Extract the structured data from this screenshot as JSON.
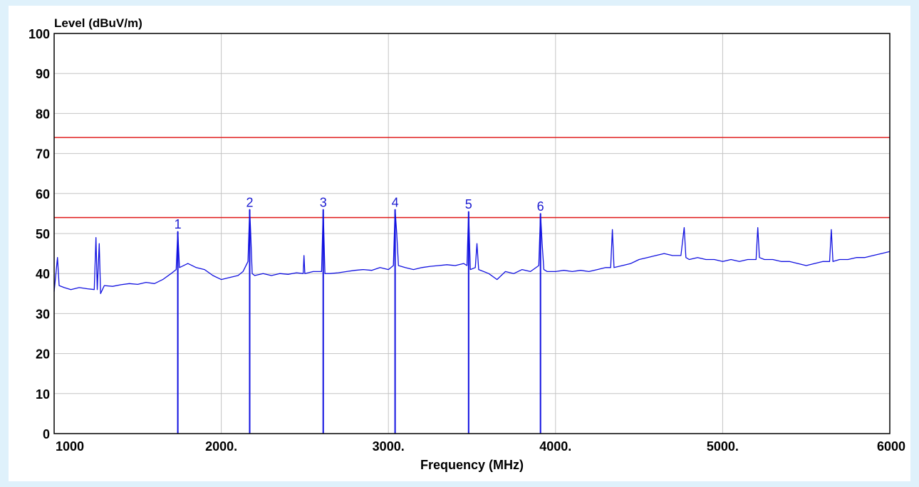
{
  "chart_data": {
    "type": "line",
    "title": "",
    "xlabel": "Frequency (MHz)",
    "ylabel": "Level (dBuV/m)",
    "xlim": [
      1000,
      6000
    ],
    "ylim": [
      0,
      100
    ],
    "x_ticks": [
      {
        "value": 1000,
        "label": "1000"
      },
      {
        "value": 2000,
        "label": "2000."
      },
      {
        "value": 3000,
        "label": "3000."
      },
      {
        "value": 4000,
        "label": "4000."
      },
      {
        "value": 5000,
        "label": "5000."
      },
      {
        "value": 6000,
        "label": "6000"
      }
    ],
    "y_ticks": [
      0,
      10,
      20,
      30,
      40,
      50,
      60,
      70,
      80,
      90,
      100
    ],
    "grid": true,
    "limit_lines": [
      {
        "value": 74,
        "color": "#e02020"
      },
      {
        "value": 54,
        "color": "#e02020"
      }
    ],
    "markers": [
      {
        "label": "1",
        "x": 1740,
        "y": 50.5
      },
      {
        "label": "2",
        "x": 2170,
        "y": 56.0
      },
      {
        "label": "3",
        "x": 2610,
        "y": 56.0
      },
      {
        "label": "4",
        "x": 3040,
        "y": 56.0
      },
      {
        "label": "5",
        "x": 3480,
        "y": 55.5
      },
      {
        "label": "6",
        "x": 3910,
        "y": 55.0
      }
    ],
    "series": [
      {
        "color": "#1010e0",
        "points": [
          [
            1000,
            35.5
          ],
          [
            1020,
            44.0
          ],
          [
            1030,
            37.0
          ],
          [
            1060,
            36.5
          ],
          [
            1100,
            36.0
          ],
          [
            1150,
            36.5
          ],
          [
            1200,
            36.2
          ],
          [
            1240,
            36.0
          ],
          [
            1250,
            49.0
          ],
          [
            1258,
            36.0
          ],
          [
            1270,
            47.5
          ],
          [
            1278,
            35.0
          ],
          [
            1300,
            37.0
          ],
          [
            1350,
            36.8
          ],
          [
            1400,
            37.2
          ],
          [
            1450,
            37.5
          ],
          [
            1500,
            37.3
          ],
          [
            1550,
            37.8
          ],
          [
            1600,
            37.5
          ],
          [
            1650,
            38.5
          ],
          [
            1700,
            40.0
          ],
          [
            1730,
            41.0
          ],
          [
            1740,
            50.5
          ],
          [
            1750,
            41.5
          ],
          [
            1800,
            42.5
          ],
          [
            1850,
            41.5
          ],
          [
            1900,
            41.0
          ],
          [
            1950,
            39.5
          ],
          [
            2000,
            38.5
          ],
          [
            2050,
            39.0
          ],
          [
            2100,
            39.5
          ],
          [
            2130,
            40.5
          ],
          [
            2160,
            43.0
          ],
          [
            2170,
            56.0
          ],
          [
            2175,
            51.0
          ],
          [
            2185,
            40.0
          ],
          [
            2200,
            39.5
          ],
          [
            2250,
            40.0
          ],
          [
            2300,
            39.5
          ],
          [
            2350,
            40.0
          ],
          [
            2400,
            39.8
          ],
          [
            2450,
            40.2
          ],
          [
            2490,
            40.0
          ],
          [
            2495,
            44.5
          ],
          [
            2500,
            40.0
          ],
          [
            2550,
            40.5
          ],
          [
            2600,
            40.5
          ],
          [
            2610,
            56.0
          ],
          [
            2620,
            40.0
          ],
          [
            2650,
            40.0
          ],
          [
            2700,
            40.2
          ],
          [
            2750,
            40.5
          ],
          [
            2800,
            40.8
          ],
          [
            2850,
            41.0
          ],
          [
            2900,
            40.8
          ],
          [
            2950,
            41.5
          ],
          [
            3000,
            41.0
          ],
          [
            3030,
            42.0
          ],
          [
            3040,
            56.0
          ],
          [
            3050,
            50.0
          ],
          [
            3060,
            42.0
          ],
          [
            3100,
            41.5
          ],
          [
            3150,
            41.0
          ],
          [
            3200,
            41.5
          ],
          [
            3250,
            41.8
          ],
          [
            3300,
            42.0
          ],
          [
            3350,
            42.2
          ],
          [
            3400,
            42.0
          ],
          [
            3450,
            42.5
          ],
          [
            3470,
            42.0
          ],
          [
            3480,
            55.5
          ],
          [
            3490,
            41.0
          ],
          [
            3520,
            41.5
          ],
          [
            3530,
            47.5
          ],
          [
            3540,
            41.0
          ],
          [
            3600,
            40.0
          ],
          [
            3650,
            38.5
          ],
          [
            3700,
            40.5
          ],
          [
            3750,
            40.0
          ],
          [
            3800,
            41.0
          ],
          [
            3850,
            40.5
          ],
          [
            3900,
            42.0
          ],
          [
            3910,
            55.0
          ],
          [
            3920,
            47.5
          ],
          [
            3930,
            41.0
          ],
          [
            3950,
            40.5
          ],
          [
            4000,
            40.5
          ],
          [
            4050,
            40.8
          ],
          [
            4100,
            40.5
          ],
          [
            4150,
            40.8
          ],
          [
            4200,
            40.5
          ],
          [
            4250,
            41.0
          ],
          [
            4300,
            41.5
          ],
          [
            4330,
            41.5
          ],
          [
            4340,
            51.0
          ],
          [
            4350,
            41.5
          ],
          [
            4400,
            42.0
          ],
          [
            4450,
            42.5
          ],
          [
            4500,
            43.5
          ],
          [
            4550,
            44.0
          ],
          [
            4600,
            44.5
          ],
          [
            4650,
            45.0
          ],
          [
            4700,
            44.5
          ],
          [
            4750,
            44.5
          ],
          [
            4770,
            51.5
          ],
          [
            4780,
            44.0
          ],
          [
            4800,
            43.5
          ],
          [
            4850,
            44.0
          ],
          [
            4900,
            43.5
          ],
          [
            4950,
            43.5
          ],
          [
            5000,
            43.0
          ],
          [
            5050,
            43.5
          ],
          [
            5100,
            43.0
          ],
          [
            5150,
            43.5
          ],
          [
            5200,
            43.5
          ],
          [
            5210,
            51.5
          ],
          [
            5220,
            44.0
          ],
          [
            5250,
            43.5
          ],
          [
            5300,
            43.5
          ],
          [
            5350,
            43.0
          ],
          [
            5400,
            43.0
          ],
          [
            5450,
            42.5
          ],
          [
            5500,
            42.0
          ],
          [
            5550,
            42.5
          ],
          [
            5600,
            43.0
          ],
          [
            5640,
            43.0
          ],
          [
            5650,
            51.0
          ],
          [
            5660,
            43.0
          ],
          [
            5700,
            43.5
          ],
          [
            5750,
            43.5
          ],
          [
            5800,
            44.0
          ],
          [
            5850,
            44.0
          ],
          [
            5900,
            44.5
          ],
          [
            5950,
            45.0
          ],
          [
            6000,
            45.5
          ]
        ]
      }
    ]
  }
}
